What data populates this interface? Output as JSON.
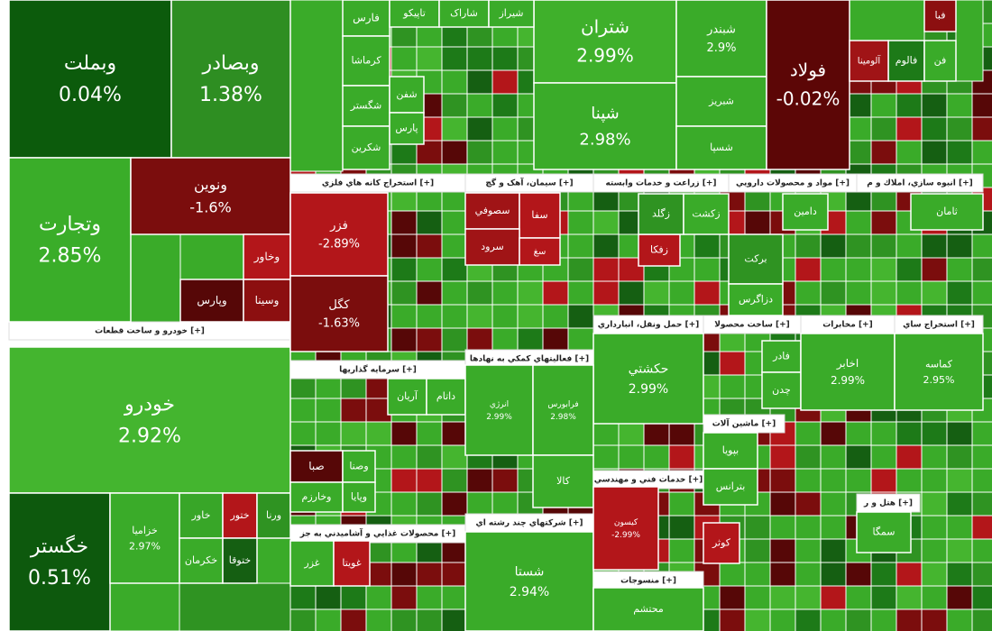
{
  "sectors": [
    {
      "title": "خودرو و ساخت قطعات [+]"
    },
    {
      "title": "استخراج كانه هاي فلزي [+]"
    },
    {
      "title": "سیمان، آهک و گچ [+]"
    },
    {
      "title": "زراعت و خدمات وابسته [+]"
    },
    {
      "title": "مواد و محصولات دارويي [+]"
    },
    {
      "title": "انبوه سازي، املاك و م [+]"
    },
    {
      "title": "حمل ونقل، انبارداري [+]"
    },
    {
      "title": "ساخت محصولا [+]"
    },
    {
      "title": "مخابرات [+]"
    },
    {
      "title": "استخراج ساي [+]"
    },
    {
      "title": "سرمايه گذاريها [+]"
    },
    {
      "title": "فعاليتهاي كمكي به نهادها [+]"
    },
    {
      "title": "خدمات فني و مهندسي [+]"
    },
    {
      "title": "منسوجات [+]"
    },
    {
      "title": "محصولات غذايي و آشاميدني به جز [+]"
    },
    {
      "title": "شركتهاي چند رشته اي [+]"
    },
    {
      "title": "ماشين آلات [+]"
    },
    {
      "title": "هتل و ر [+]"
    }
  ],
  "tiles": [
    {
      "label": "وبملت",
      "change": "0.04%"
    },
    {
      "label": "وبصادر",
      "change": "1.38%"
    },
    {
      "label": "وتجارت",
      "change": "2.85%"
    },
    {
      "label": "ونوین",
      "change": "-1.6%"
    },
    {
      "label": "وخاور"
    },
    {
      "label": "وپارس"
    },
    {
      "label": "وسینا"
    },
    {
      "label": "خودرو",
      "change": "2.92%"
    },
    {
      "label": "خگستر",
      "change": "0.51%"
    },
    {
      "label": "خزامیا",
      "change": "2.97%"
    },
    {
      "label": "خاور"
    },
    {
      "label": "ختور"
    },
    {
      "label": "ورنا"
    },
    {
      "label": "خکرمان"
    },
    {
      "label": "ختوقا"
    },
    {
      "label": "شتران",
      "change": "2.99%"
    },
    {
      "label": "شپنا",
      "change": "2.98%"
    },
    {
      "label": "شبندر",
      "change": "2.9%"
    },
    {
      "label": "شبریز"
    },
    {
      "label": "شسپا"
    },
    {
      "label": "فولاد",
      "change": "-0.02%"
    },
    {
      "label": "فارس"
    },
    {
      "label": "تاپیکو"
    },
    {
      "label": "شاراک"
    },
    {
      "label": "شیراز"
    },
    {
      "label": "کرماشا"
    },
    {
      "label": "شگستر"
    },
    {
      "label": "شکرین"
    },
    {
      "label": "شفن"
    },
    {
      "label": "پارس"
    },
    {
      "label": "فالوم"
    },
    {
      "label": "آلومینا"
    },
    {
      "label": "فن"
    },
    {
      "label": "فبا"
    },
    {
      "label": "فزر",
      "change": "-2.89%"
    },
    {
      "label": "کگل",
      "change": "-1.63%"
    },
    {
      "label": "سصوفي"
    },
    {
      "label": "سفا"
    },
    {
      "label": "سرود"
    },
    {
      "label": "سغ"
    },
    {
      "label": "زفکا"
    },
    {
      "label": "زگلد"
    },
    {
      "label": "زکشت"
    },
    {
      "label": "دامین"
    },
    {
      "label": "برکت"
    },
    {
      "label": "دزاگرس"
    },
    {
      "label": "ثامان"
    },
    {
      "label": "حکشتي",
      "change": "2.99%"
    },
    {
      "label": "فادر"
    },
    {
      "label": "چدن"
    },
    {
      "label": "اخابر",
      "change": "2.99%"
    },
    {
      "label": "کماسه",
      "change": "2.95%"
    },
    {
      "label": "آریان"
    },
    {
      "label": "داتام"
    },
    {
      "label": "صبا"
    },
    {
      "label": "وصنا"
    },
    {
      "label": "وخارزم"
    },
    {
      "label": "وپایا"
    },
    {
      "label": "انرژي",
      "change": "2.99%"
    },
    {
      "label": "فرابورس",
      "change": "2.98%"
    },
    {
      "label": "کالا"
    },
    {
      "label": "شستا",
      "change": "2.94%"
    },
    {
      "label": "کیسون",
      "change": "-2.99%"
    },
    {
      "label": "محتشم"
    },
    {
      "label": "بپویا"
    },
    {
      "label": "بترانس"
    },
    {
      "label": "غزر"
    },
    {
      "label": "غویتا"
    },
    {
      "label": "کوثر"
    },
    {
      "label": "سمگا"
    }
  ]
}
